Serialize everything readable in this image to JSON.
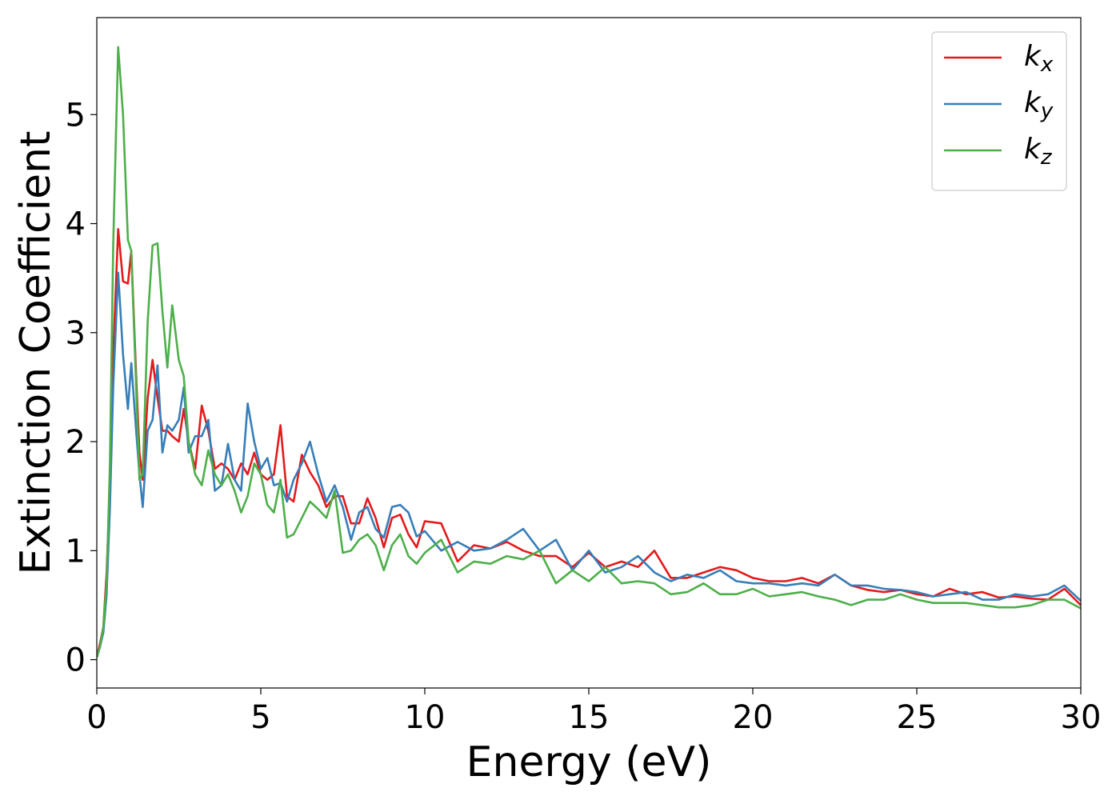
{
  "chart_data": {
    "type": "line",
    "xlabel": "Energy (eV)",
    "ylabel": "Extinction Coefficient",
    "xlim": [
      0,
      30
    ],
    "ylim": [
      -0.26,
      5.89
    ],
    "xticks": [
      0,
      5,
      10,
      15,
      20,
      25,
      30
    ],
    "yticks": [
      0,
      1,
      2,
      3,
      4,
      5
    ],
    "legend": "upper right",
    "x": [
      0,
      0.1,
      0.2,
      0.3,
      0.4,
      0.5,
      0.65,
      0.8,
      0.95,
      1.05,
      1.2,
      1.3,
      1.4,
      1.55,
      1.7,
      1.85,
      2.0,
      2.15,
      2.3,
      2.5,
      2.65,
      2.8,
      3.0,
      3.2,
      3.4,
      3.6,
      3.8,
      4.0,
      4.2,
      4.4,
      4.6,
      4.8,
      5.0,
      5.2,
      5.4,
      5.6,
      5.8,
      6.0,
      6.25,
      6.5,
      6.75,
      7.0,
      7.25,
      7.5,
      7.75,
      8.0,
      8.25,
      8.5,
      8.75,
      9.0,
      9.25,
      9.5,
      9.75,
      10.0,
      10.5,
      11,
      11.5,
      12,
      12.5,
      13,
      13.5,
      14,
      14.5,
      15,
      15.5,
      16,
      16.5,
      17,
      17.5,
      18,
      18.5,
      19,
      19.5,
      20,
      20.5,
      21,
      21.5,
      22,
      22.5,
      23,
      23.5,
      24,
      24.5,
      25,
      25.5,
      26,
      26.5,
      27,
      27.5,
      28,
      28.5,
      29,
      29.5,
      30
    ],
    "series": [
      {
        "name": "kx",
        "color": "#e41a1c",
        "values": [
          0.02,
          0.15,
          0.3,
          0.8,
          1.6,
          2.8,
          3.95,
          3.47,
          3.45,
          3.75,
          2.6,
          1.9,
          1.65,
          2.4,
          2.75,
          2.4,
          2.1,
          2.1,
          2.05,
          2.0,
          2.3,
          2.0,
          1.75,
          2.33,
          2.1,
          1.75,
          1.8,
          1.75,
          1.65,
          1.8,
          1.7,
          1.9,
          1.7,
          1.65,
          1.7,
          2.15,
          1.5,
          1.45,
          1.88,
          1.72,
          1.6,
          1.4,
          1.5,
          1.5,
          1.25,
          1.25,
          1.48,
          1.3,
          1.03,
          1.3,
          1.33,
          1.15,
          1.03,
          1.27,
          1.25,
          0.9,
          1.05,
          1.02,
          1.08,
          1.0,
          0.95,
          0.95,
          0.85,
          0.98,
          0.85,
          0.9,
          0.85,
          1.0,
          0.75,
          0.75,
          0.8,
          0.85,
          0.82,
          0.75,
          0.72,
          0.72,
          0.75,
          0.7,
          0.78,
          0.68,
          0.64,
          0.62,
          0.64,
          0.6,
          0.58,
          0.65,
          0.6,
          0.62,
          0.57,
          0.58,
          0.56,
          0.55,
          0.65,
          0.5
        ]
      },
      {
        "name": "ky",
        "color": "#377eb8",
        "values": [
          0.02,
          0.12,
          0.25,
          0.6,
          1.4,
          2.5,
          3.55,
          2.8,
          2.3,
          2.72,
          2.1,
          1.7,
          1.4,
          2.1,
          2.2,
          2.7,
          1.9,
          2.15,
          2.1,
          2.2,
          2.5,
          1.9,
          2.05,
          2.05,
          2.2,
          1.55,
          1.6,
          1.98,
          1.65,
          1.55,
          2.35,
          2.0,
          1.75,
          1.85,
          1.6,
          1.62,
          1.45,
          1.65,
          1.8,
          2.0,
          1.7,
          1.45,
          1.6,
          1.4,
          1.1,
          1.35,
          1.4,
          1.2,
          1.12,
          1.4,
          1.42,
          1.35,
          1.13,
          1.18,
          1.0,
          1.08,
          1.0,
          1.02,
          1.1,
          1.2,
          1.0,
          1.1,
          0.82,
          1.0,
          0.8,
          0.85,
          0.95,
          0.8,
          0.72,
          0.78,
          0.75,
          0.82,
          0.72,
          0.7,
          0.7,
          0.68,
          0.7,
          0.68,
          0.78,
          0.68,
          0.68,
          0.65,
          0.64,
          0.62,
          0.58,
          0.6,
          0.62,
          0.55,
          0.55,
          0.6,
          0.58,
          0.6,
          0.68,
          0.54
        ]
      },
      {
        "name": "kz",
        "color": "#4daf4a",
        "values": [
          0.02,
          0.12,
          0.3,
          0.7,
          1.8,
          3.8,
          5.62,
          5.0,
          3.85,
          3.75,
          2.5,
          1.65,
          1.7,
          3.1,
          3.8,
          3.82,
          3.2,
          2.68,
          3.25,
          2.75,
          2.6,
          2.0,
          1.7,
          1.6,
          1.92,
          1.7,
          1.6,
          1.7,
          1.55,
          1.35,
          1.5,
          1.8,
          1.7,
          1.42,
          1.35,
          1.65,
          1.12,
          1.15,
          1.3,
          1.45,
          1.38,
          1.3,
          1.55,
          0.98,
          1.0,
          1.1,
          1.15,
          1.05,
          0.82,
          1.05,
          1.15,
          0.95,
          0.88,
          0.98,
          1.1,
          0.8,
          0.9,
          0.88,
          0.95,
          0.92,
          1.0,
          0.7,
          0.82,
          0.72,
          0.85,
          0.7,
          0.72,
          0.7,
          0.6,
          0.62,
          0.7,
          0.6,
          0.6,
          0.65,
          0.58,
          0.6,
          0.62,
          0.58,
          0.55,
          0.5,
          0.55,
          0.55,
          0.6,
          0.55,
          0.52,
          0.52,
          0.52,
          0.5,
          0.48,
          0.48,
          0.5,
          0.55,
          0.55,
          0.47
        ]
      }
    ]
  }
}
